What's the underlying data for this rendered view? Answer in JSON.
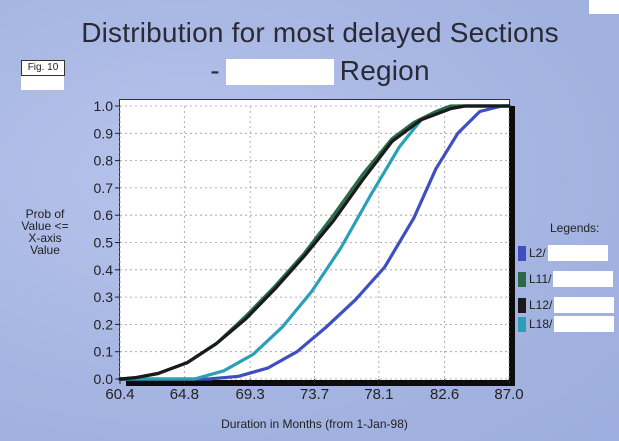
{
  "title_line1": "Distribution for most delayed Sections",
  "title_line2_prefix": "-",
  "title_line2_suffix": "Region",
  "figure_label": "Fig. 10",
  "colors": {
    "background": "#a9b8e4",
    "L2": "#3f4fc0",
    "L11": "#2a6a4a",
    "L12": "#1a1a1a",
    "L18": "#2a9fb8"
  },
  "chart_data": {
    "type": "line",
    "title": "Distribution for most delayed Sections - Region",
    "xlabel": "Duration in Months (from 1-Jan-98)",
    "ylabel": "Prob of\nValue  <=\nX-axis\nValue",
    "xlim": [
      60.4,
      87.0
    ],
    "ylim": [
      0.0,
      1.0
    ],
    "x_ticks": [
      "60.4",
      "64.8",
      "69.3",
      "73.7",
      "78.1",
      "82.6",
      "87.0"
    ],
    "y_ticks": [
      "0.0",
      "0.1",
      "0.2",
      "0.3",
      "0.4",
      "0.5",
      "0.6",
      "0.7",
      "0.8",
      "0.9",
      "1.0"
    ],
    "grid": true,
    "legend_title": "Legends:",
    "legend_position": "right",
    "series": [
      {
        "name": "L2/",
        "color": "#3f4fc0",
        "points": [
          [
            60.4,
            0
          ],
          [
            66.5,
            0
          ],
          [
            68.5,
            0.01
          ],
          [
            70.5,
            0.04
          ],
          [
            72.5,
            0.1
          ],
          [
            74.5,
            0.19
          ],
          [
            76.5,
            0.29
          ],
          [
            78.5,
            0.41
          ],
          [
            80.5,
            0.59
          ],
          [
            82,
            0.77
          ],
          [
            83.5,
            0.9
          ],
          [
            85,
            0.98
          ],
          [
            86.5,
            1.0
          ],
          [
            87,
            1.0
          ]
        ]
      },
      {
        "name": "L11/",
        "color": "#2a6a4a",
        "points": [
          [
            60.4,
            0
          ],
          [
            61.5,
            0.005
          ],
          [
            63,
            0.02
          ],
          [
            65,
            0.06
          ],
          [
            67,
            0.13
          ],
          [
            69,
            0.23
          ],
          [
            71,
            0.34
          ],
          [
            73,
            0.46
          ],
          [
            75,
            0.6
          ],
          [
            77,
            0.75
          ],
          [
            79,
            0.88
          ],
          [
            80.5,
            0.94
          ],
          [
            82,
            0.98
          ],
          [
            83,
            1.0
          ],
          [
            87,
            1.0
          ]
        ]
      },
      {
        "name": "L12/",
        "color": "#1a1a1a",
        "points": [
          [
            60.4,
            0
          ],
          [
            61.5,
            0.005
          ],
          [
            63,
            0.02
          ],
          [
            65,
            0.06
          ],
          [
            67,
            0.13
          ],
          [
            69,
            0.22
          ],
          [
            71,
            0.33
          ],
          [
            73,
            0.45
          ],
          [
            75,
            0.58
          ],
          [
            77,
            0.73
          ],
          [
            79,
            0.87
          ],
          [
            81,
            0.95
          ],
          [
            83,
            0.99
          ],
          [
            84,
            1.0
          ],
          [
            87,
            1.0
          ]
        ]
      },
      {
        "name": "L18/",
        "color": "#2a9fb8",
        "points": [
          [
            60.4,
            0
          ],
          [
            65.5,
            0
          ],
          [
            67.5,
            0.03
          ],
          [
            69.5,
            0.09
          ],
          [
            71.5,
            0.19
          ],
          [
            73.5,
            0.32
          ],
          [
            75.5,
            0.48
          ],
          [
            77.5,
            0.67
          ],
          [
            79.5,
            0.85
          ],
          [
            81,
            0.95
          ],
          [
            82.5,
            0.99
          ],
          [
            83.5,
            1.0
          ],
          [
            87,
            1.0
          ]
        ]
      }
    ]
  }
}
